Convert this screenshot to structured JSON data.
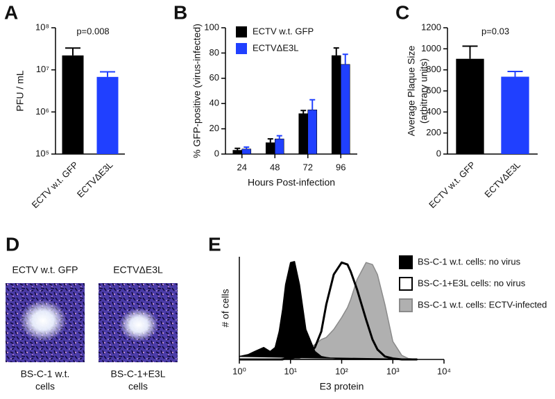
{
  "chart_data": [
    {
      "label": "A",
      "type": "bar",
      "categories": [
        "ECTV w.t. GFP",
        "ECTVΔE3L"
      ],
      "values": [
        22000000,
        6800000
      ],
      "errors": [
        11000000,
        2200000
      ],
      "colors": [
        "#000000",
        "#2040ff"
      ],
      "ylabel": "PFU / mL",
      "annotation": "p=0.008",
      "ylim": [
        100000,
        100000000
      ],
      "log_y": true,
      "yticks": [
        {
          "value": 100000,
          "label": "10⁵"
        },
        {
          "value": 1000000,
          "label": "10⁶"
        },
        {
          "value": 10000000,
          "label": "10⁷"
        },
        {
          "value": 100000000,
          "label": "10⁸"
        }
      ]
    },
    {
      "label": "B",
      "type": "bar",
      "categories": [
        "24",
        "48",
        "72",
        "96"
      ],
      "xlabel": "Hours Post-infection",
      "ylabel": "% GFP-positive (virus-infected)",
      "series": [
        {
          "name": "ECTV w.t. GFP",
          "color": "#000000",
          "values": [
            3,
            9,
            32,
            78
          ],
          "errors": [
            1.5,
            3,
            2.5,
            6
          ]
        },
        {
          "name": "ECTVΔE3L",
          "color": "#2040ff",
          "values": [
            4,
            12,
            35,
            71
          ],
          "errors": [
            1.5,
            2.5,
            8,
            8
          ]
        }
      ],
      "ylim": [
        0,
        100
      ],
      "yticks": [
        0,
        20,
        40,
        60,
        80,
        100
      ],
      "legend": "upper left"
    },
    {
      "label": "C",
      "type": "bar",
      "categories": [
        "ECTV w.t. GFP",
        "ECTVΔE3L"
      ],
      "values": [
        905,
        735
      ],
      "errors": [
        120,
        50
      ],
      "colors": [
        "#000000",
        "#2040ff"
      ],
      "ylabel": [
        "Average Plaque Size",
        "(arbitrary units)"
      ],
      "annotation": "p=0.03",
      "ylim": [
        0,
        1200
      ],
      "yticks": [
        0,
        200,
        400,
        600,
        800,
        1000,
        1200
      ]
    },
    {
      "label": "E",
      "type": "area",
      "x": [
        1,
        1.5,
        2,
        3,
        4,
        5,
        6,
        7,
        8,
        10,
        12,
        15,
        20,
        30,
        40,
        50,
        70,
        100,
        130,
        150,
        200,
        300,
        400,
        500,
        700,
        1000,
        1500,
        2000,
        3000
      ],
      "series": [
        {
          "name": "BS-C-1 w.t. cells: no virus",
          "color": "#000000",
          "values": [
            3,
            5,
            8,
            12,
            8,
            12,
            28,
            50,
            75,
            97,
            98,
            75,
            30,
            8,
            3,
            2,
            1,
            0,
            0,
            0,
            0,
            0,
            0,
            0,
            0,
            0,
            0,
            0,
            0
          ]
        },
        {
          "name": "BS-C-1+E3L cells: no virus",
          "color": "#ffffff",
          "values": [
            0,
            0,
            0,
            0,
            0,
            0,
            0,
            0,
            1,
            1,
            2,
            2,
            4,
            12,
            28,
            55,
            85,
            97,
            95,
            88,
            70,
            40,
            20,
            10,
            3,
            1,
            0,
            0,
            0
          ]
        },
        {
          "name": "BS-C-1 w.t. cells: ECTV-infected",
          "color": "#b0b0b0",
          "values": [
            0,
            0,
            0,
            0,
            0,
            0,
            0,
            1,
            1,
            2,
            3,
            4,
            8,
            15,
            20,
            22,
            30,
            42,
            52,
            60,
            80,
            97,
            95,
            85,
            55,
            18,
            4,
            1,
            0
          ]
        }
      ],
      "xlim": [
        1,
        10000
      ],
      "log_x": true,
      "ylim": [
        0,
        100
      ],
      "xticks": [
        {
          "value": 1,
          "label": "10⁰"
        },
        {
          "value": 10,
          "label": "10¹"
        },
        {
          "value": 100,
          "label": "10²"
        },
        {
          "value": 1000,
          "label": "10³"
        },
        {
          "value": 10000,
          "label": "10⁴"
        }
      ],
      "xlabel": "E3 protein",
      "ylabel": "# of cells",
      "legend": "upper right"
    }
  ],
  "panel_d": {
    "label": "D",
    "images": [
      {
        "title": "ECTV w.t. GFP",
        "caption": [
          "BS-C-1 w.t.",
          "cells"
        ]
      },
      {
        "title": "ECTVΔE3L",
        "caption": [
          "BS-C-1+E3L",
          "cells"
        ]
      }
    ]
  }
}
